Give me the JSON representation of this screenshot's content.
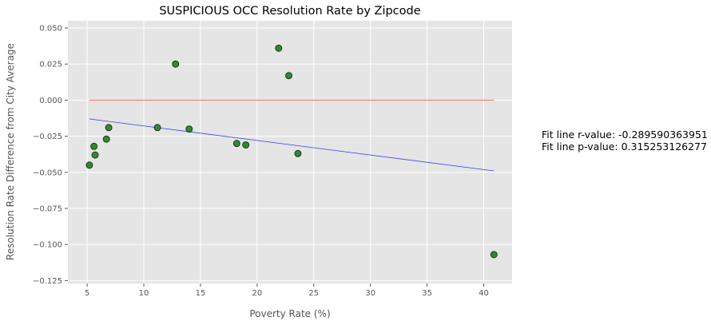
{
  "chart_data": {
    "type": "scatter",
    "title": "SUSPICIOUS OCC Resolution Rate by Zipcode",
    "xlabel": "Poverty Rate (%)",
    "ylabel": "Resolution Rate Difference from City Average",
    "xlim": [
      3.3,
      42.5
    ],
    "ylim": [
      -0.127,
      0.055
    ],
    "xticks": [
      5,
      10,
      15,
      20,
      25,
      30,
      35,
      40
    ],
    "yticks": [
      -0.125,
      -0.1,
      -0.075,
      -0.05,
      -0.025,
      0.0,
      0.025,
      0.05
    ],
    "xtick_labels": [
      "5",
      "10",
      "15",
      "20",
      "25",
      "30",
      "35",
      "40"
    ],
    "ytick_labels": [
      "−0.125",
      "−0.100",
      "−0.075",
      "−0.050",
      "−0.025",
      "0.000",
      "0.025",
      "0.050"
    ],
    "grid": true,
    "background_color": "#e5e5e5",
    "point_color": "#2e8b2e",
    "point_edge_color": "#1a3d1a",
    "points": [
      {
        "x": 5.2,
        "y": -0.045
      },
      {
        "x": 5.6,
        "y": -0.032
      },
      {
        "x": 5.7,
        "y": -0.038
      },
      {
        "x": 6.7,
        "y": -0.027
      },
      {
        "x": 6.9,
        "y": -0.019
      },
      {
        "x": 11.2,
        "y": -0.019
      },
      {
        "x": 12.8,
        "y": 0.025
      },
      {
        "x": 14.0,
        "y": -0.02
      },
      {
        "x": 18.2,
        "y": -0.03
      },
      {
        "x": 19.0,
        "y": -0.031
      },
      {
        "x": 21.9,
        "y": 0.036
      },
      {
        "x": 22.8,
        "y": 0.017
      },
      {
        "x": 23.6,
        "y": -0.037
      },
      {
        "x": 40.9,
        "y": -0.107
      }
    ],
    "reference_line": {
      "x": [
        5.2,
        40.9
      ],
      "y": [
        0.0,
        0.0
      ],
      "color": "#ff6b6b"
    },
    "fit_line": {
      "x": [
        5.2,
        40.9
      ],
      "y": [
        -0.013,
        -0.049
      ],
      "color": "#4040ff"
    },
    "annotations": [
      "Fit line r-value: -0.289590363951",
      "Fit line p-value: 0.315253126277"
    ]
  }
}
